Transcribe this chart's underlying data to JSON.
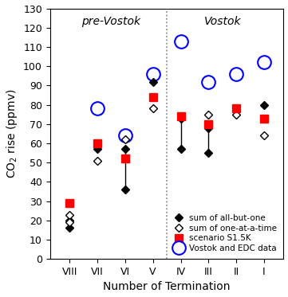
{
  "terminations": [
    "VIII",
    "VII",
    "VI",
    "V",
    "IV",
    "III",
    "II",
    "I"
  ],
  "x_positions": [
    1,
    2,
    3,
    4,
    5,
    6,
    7,
    8
  ],
  "all_but_one_high": [
    20,
    57,
    57,
    92,
    73,
    68,
    78,
    80
  ],
  "all_but_one_low": [
    16,
    null,
    36,
    null,
    57,
    55,
    null,
    null
  ],
  "one_at_a_time_high": [
    23,
    51,
    62,
    78,
    null,
    75,
    75,
    64
  ],
  "one_at_a_time_low": [
    19,
    null,
    null,
    null,
    null,
    null,
    null,
    null
  ],
  "scenario_s15k_high": [
    29,
    60,
    52,
    84,
    74,
    70,
    78,
    73
  ],
  "scenario_s15k_low": [
    null,
    null,
    null,
    null,
    null,
    null,
    null,
    null
  ],
  "vostok_edc": [
    null,
    78,
    64,
    96,
    113,
    92,
    96,
    102
  ],
  "dotted_line_x": 4.5,
  "ylabel": "CO$_2$ rise (ppmv)",
  "xlabel": "Number of Termination",
  "pre_vostok_label": "pre-Vostok",
  "vostok_label": "Vostok",
  "ylim": [
    0,
    130
  ],
  "yticks": [
    0,
    10,
    20,
    30,
    40,
    50,
    60,
    70,
    80,
    90,
    100,
    110,
    120,
    130
  ],
  "legend_labels": [
    "sum of all-but-one",
    "sum of one-at-a-time",
    "scenario S1.5K",
    "Vostok and EDC data"
  ],
  "legend_fontsize": 7.5,
  "axis_fontsize": 10,
  "tick_fontsize": 9,
  "section_label_fontsize": 10
}
